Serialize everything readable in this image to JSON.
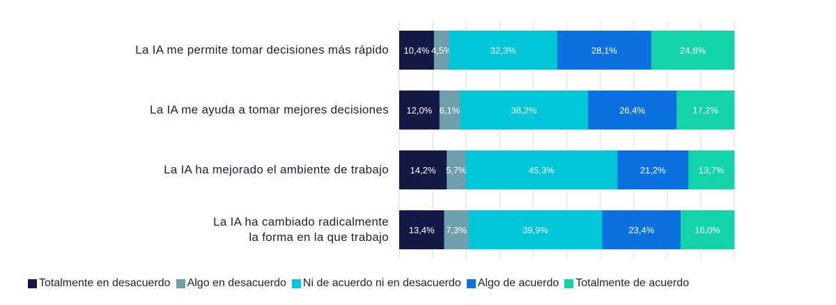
{
  "chart_data": {
    "type": "bar",
    "orientation": "horizontal",
    "stacked": true,
    "categories": [
      "La IA me permite tomar decisiones más rápido",
      "La IA me ayuda a tomar mejores decisiones",
      "La IA ha mejorado el ambiente de trabajo",
      "La IA ha cambiado radicalmente la forma en la que trabajo"
    ],
    "category_lines": [
      [
        "La IA me permite tomar decisiones más rápido"
      ],
      [
        "La IA me ayuda a tomar mejores decisiones"
      ],
      [
        "La IA ha mejorado el ambiente de trabajo"
      ],
      [
        "La IA ha cambiado radicalmente",
        "la forma en la que trabajo"
      ]
    ],
    "series": [
      {
        "name": "Totalmente en desacuerdo",
        "color": "#141a45",
        "values": [
          10.4,
          12.0,
          14.2,
          13.4
        ],
        "labels": [
          "10,4%",
          "12,0%",
          "14,2%",
          "13,4%"
        ]
      },
      {
        "name": "Algo en desacuerdo",
        "color": "#6e9fab",
        "values": [
          4.5,
          6.1,
          5.7,
          7.3
        ],
        "labels": [
          "4,5%",
          "6,1%",
          "5,7%",
          "7,3%"
        ]
      },
      {
        "name": "Ni de acuerdo ni en desacuerdo",
        "color": "#00c6d7",
        "values": [
          32.3,
          38.2,
          45.3,
          39.9
        ],
        "labels": [
          "32,3%",
          "38,2%",
          "45,3%",
          "39,9%"
        ]
      },
      {
        "name": "Algo de acuerdo",
        "color": "#0b70e0",
        "values": [
          28.1,
          26.4,
          21.2,
          23.4
        ],
        "labels": [
          "28,1%",
          "26,4%",
          "21,2%",
          "23,4%"
        ]
      },
      {
        "name": "Totalmente de acuerdo",
        "color": "#13d3a9",
        "values": [
          24.8,
          17.2,
          13.7,
          16.0
        ],
        "labels": [
          "24,8%",
          "17,2%",
          "13,7%",
          "16,0%"
        ]
      }
    ],
    "xlim": [
      0,
      100
    ],
    "grid": true,
    "legend": "bottom"
  }
}
